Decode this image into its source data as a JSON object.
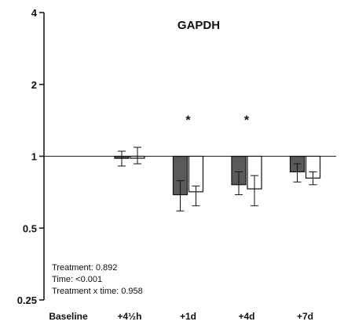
{
  "chart_data": {
    "type": "bar",
    "title": "GAPDH",
    "xlabel": "",
    "ylabel": "",
    "y_scale": "log2",
    "ylim": [
      0.25,
      4
    ],
    "y_ticks": [
      {
        "value": 0.25,
        "label": "0.25"
      },
      {
        "value": 0.5,
        "label": "0.5"
      },
      {
        "value": 1,
        "label": "1"
      },
      {
        "value": 2,
        "label": "2"
      },
      {
        "value": 4,
        "label": "4"
      }
    ],
    "reference_line": 1,
    "categories": [
      "Baseline",
      "+4½h",
      "+1d",
      "+4d",
      "+7d"
    ],
    "series": [
      {
        "color": "#5a5a5a",
        "values": [
          null,
          0.98,
          0.69,
          0.76,
          0.86
        ],
        "err_low": [
          null,
          0.91,
          0.59,
          0.69,
          0.78
        ],
        "err_high": [
          null,
          1.05,
          0.79,
          0.86,
          0.93
        ]
      },
      {
        "color": "#ffffff",
        "values": [
          null,
          1.0,
          0.71,
          0.73,
          0.81
        ],
        "err_low": [
          null,
          0.93,
          0.62,
          0.62,
          0.76
        ],
        "err_high": [
          null,
          1.09,
          0.75,
          0.83,
          0.86
        ]
      }
    ],
    "significance": [
      {
        "category": "+1d",
        "label": "*",
        "value": 1.45
      },
      {
        "category": "+4d",
        "label": "*",
        "value": 1.45
      }
    ],
    "annotations": [
      "Treatment: 0.892",
      "Time: <0.001",
      "Treatment x time: 0.958"
    ]
  }
}
